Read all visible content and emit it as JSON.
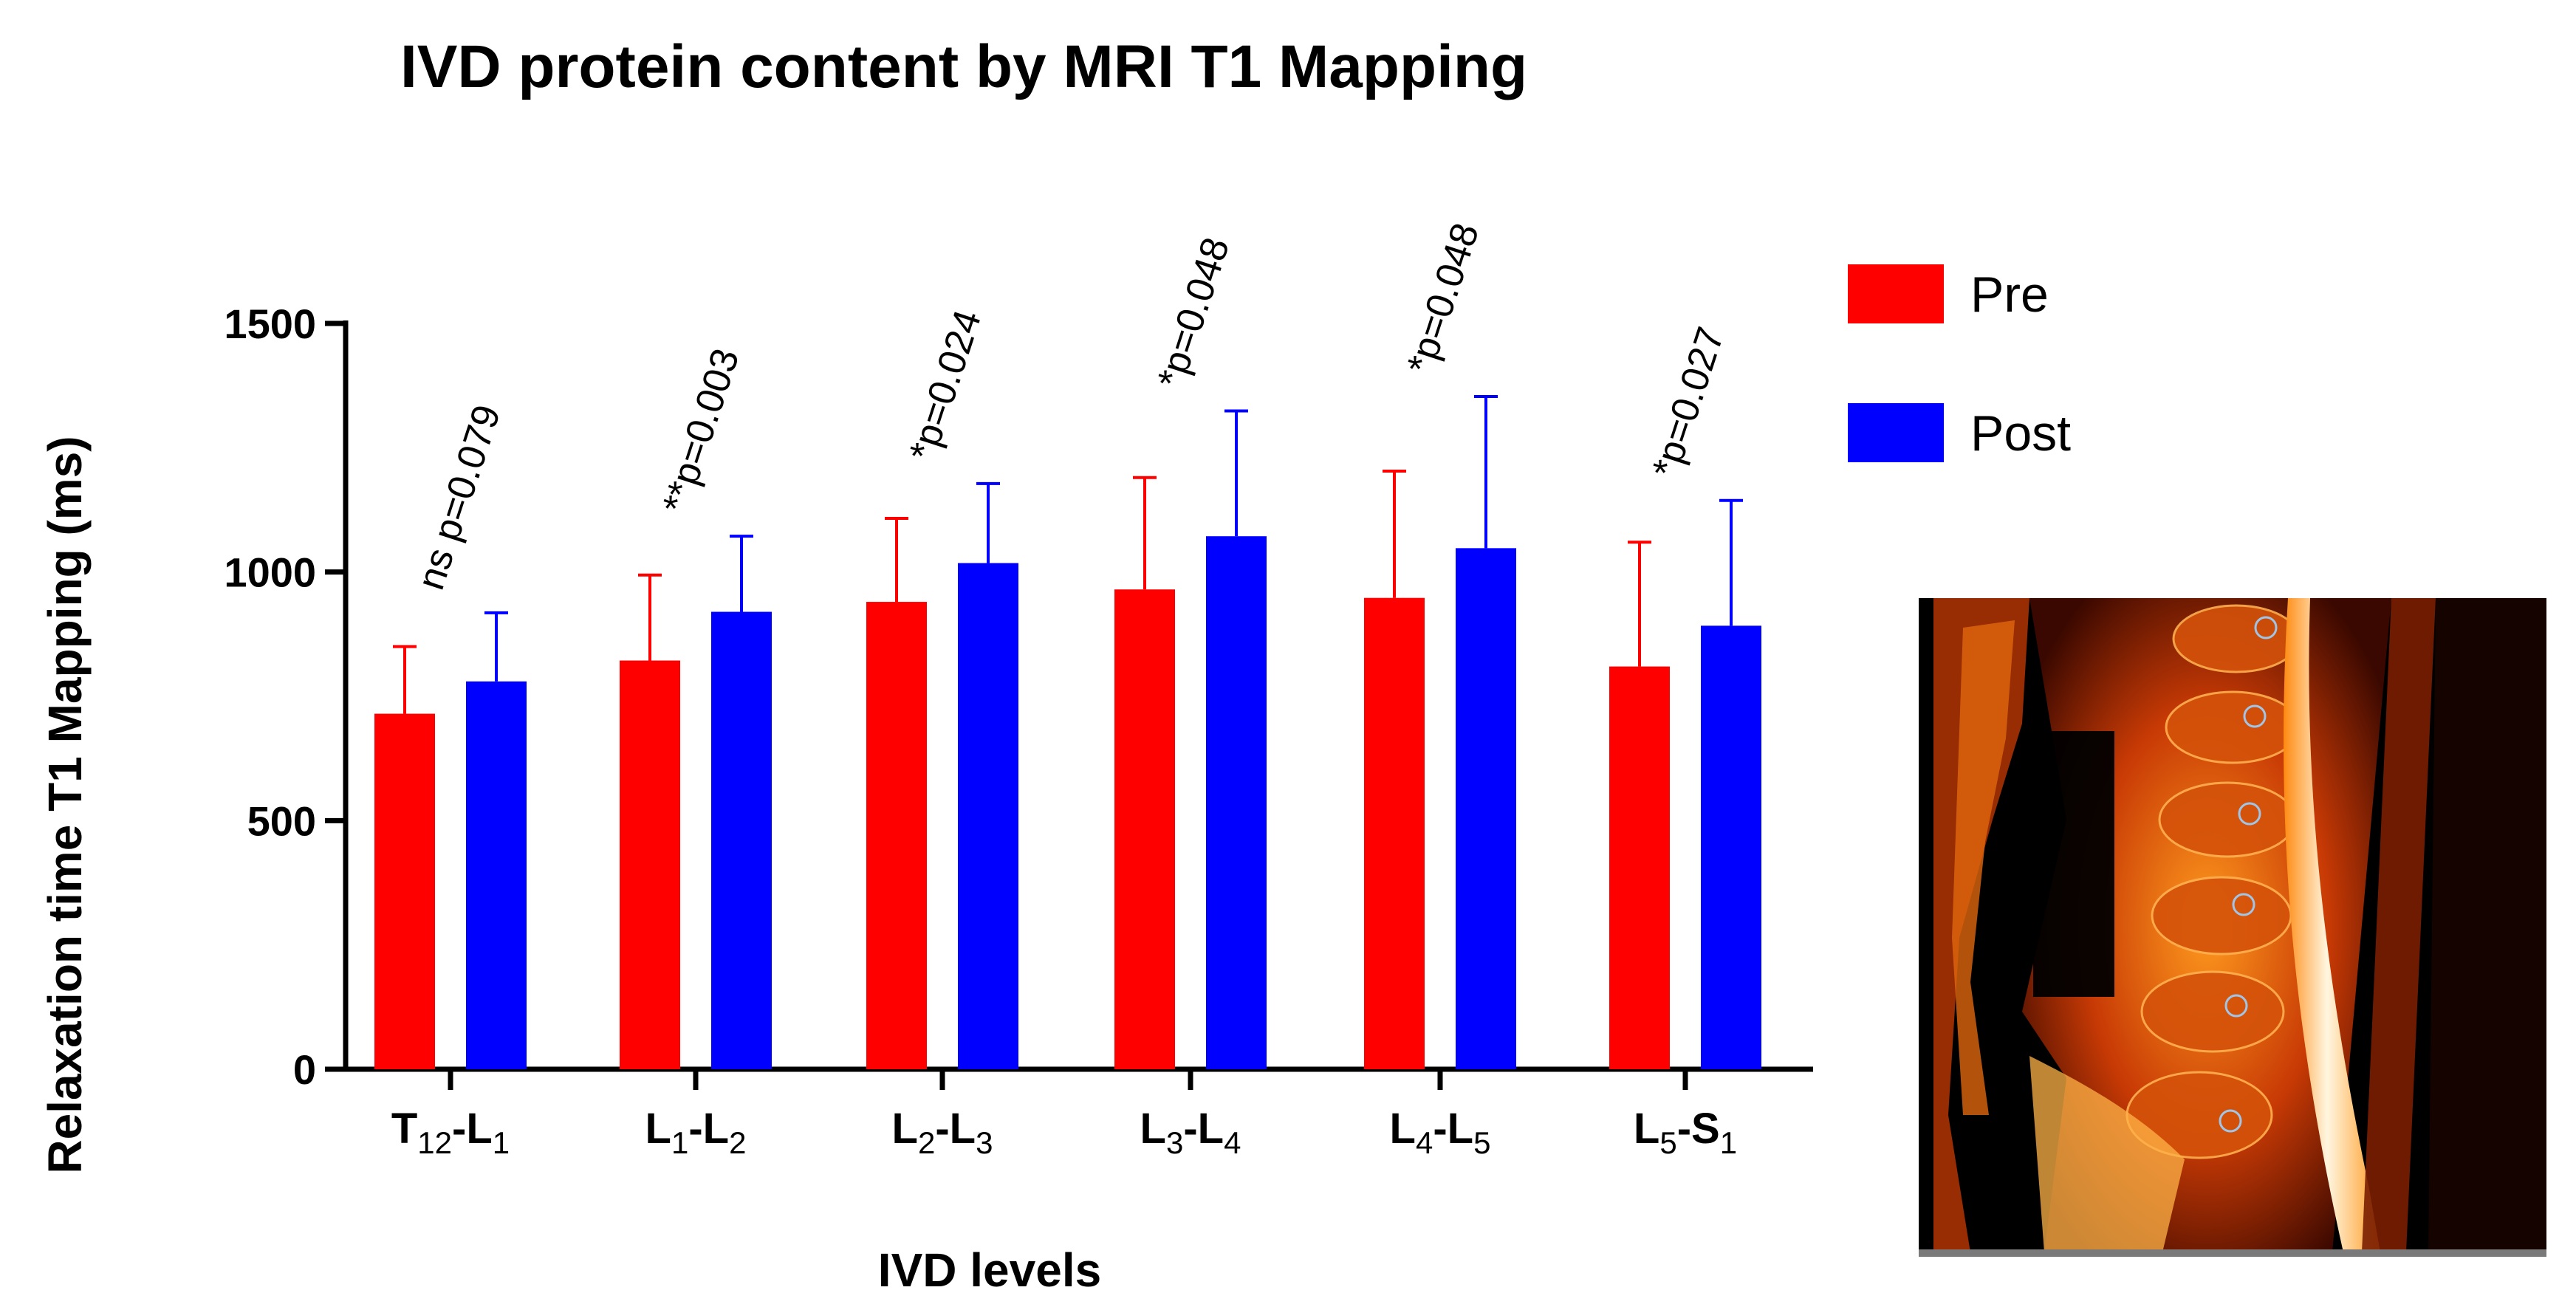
{
  "chart_data": {
    "type": "bar",
    "title": "IVD protein content by MRI T1 Mapping",
    "xlabel": "IVD levels",
    "ylabel": "Relaxation time T1 Mapping (ms)",
    "ylim": [
      0,
      1500
    ],
    "yticks": [
      0,
      500,
      1000,
      1500
    ],
    "categories": [
      {
        "main": "T",
        "sub": "12",
        "main2": "-L",
        "sub2": "1"
      },
      {
        "main": "L",
        "sub": "1",
        "main2": "-L",
        "sub2": "2"
      },
      {
        "main": "L",
        "sub": "2",
        "main2": "-L",
        "sub2": "3"
      },
      {
        "main": "L",
        "sub": "3",
        "main2": "-L",
        "sub2": "4"
      },
      {
        "main": "L",
        "sub": "4",
        "main2": "-L",
        "sub2": "5"
      },
      {
        "main": "L",
        "sub": "5",
        "main2": "-S",
        "sub2": "1"
      }
    ],
    "series": [
      {
        "name": "Pre",
        "color": "#ff0000",
        "values": [
          715,
          822,
          940,
          965,
          948,
          810
        ],
        "errors": [
          135,
          172,
          168,
          225,
          255,
          250
        ]
      },
      {
        "name": "Post",
        "color": "#0000ff",
        "values": [
          780,
          920,
          1018,
          1072,
          1048,
          892
        ],
        "errors": [
          138,
          152,
          160,
          252,
          305,
          252
        ]
      }
    ],
    "annotations": [
      "ns p=0.079",
      "**p=0.003",
      "*p=0.024",
      "*p=0.048",
      "*p=0.048",
      "*p=0.027"
    ],
    "legend_position": "top-right"
  },
  "image": {
    "description": "Sagittal MRI T1 map of lumbar spine"
  }
}
